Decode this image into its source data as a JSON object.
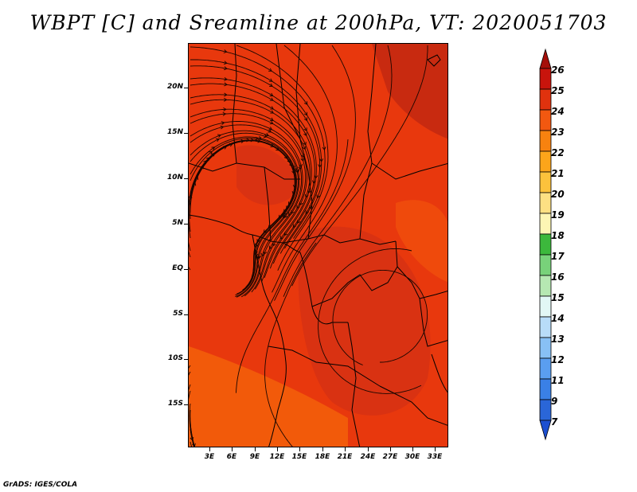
{
  "title": "WBPT [C] and Sreamline at 200hPa, VT: 2020051703",
  "credit": "GrADS: IGES/COLA",
  "map": {
    "background_colors": [
      "#e8380d",
      "#d93212",
      "#ef4a0c",
      "#c82a10",
      "#f25a0a"
    ],
    "latitude_labels": [
      "20N",
      "15N",
      "10N",
      "5N",
      "EQ",
      "5S",
      "10S",
      "15S"
    ],
    "longitude_labels": [
      "3E",
      "6E",
      "9E",
      "12E",
      "15E",
      "18E",
      "21E",
      "24E",
      "27E",
      "30E",
      "33E"
    ]
  },
  "colorbar": {
    "labels": [
      "26",
      "25",
      "24",
      "23",
      "22",
      "21",
      "20",
      "19",
      "18",
      "17",
      "16",
      "15",
      "14",
      "13",
      "12",
      "11",
      "9",
      "7"
    ],
    "colors": [
      "#a50f0a",
      "#c8140c",
      "#e0320e",
      "#f25810",
      "#f7820f",
      "#fca51a",
      "#fcc23c",
      "#fde083",
      "#fdf6b4",
      "#3cb83c",
      "#78d27a",
      "#b6e8b2",
      "#e2f7f5",
      "#b8dcf8",
      "#88c0f5",
      "#5a9ef0",
      "#3a80e6",
      "#2a66d8",
      "#1c4fd0"
    ]
  }
}
